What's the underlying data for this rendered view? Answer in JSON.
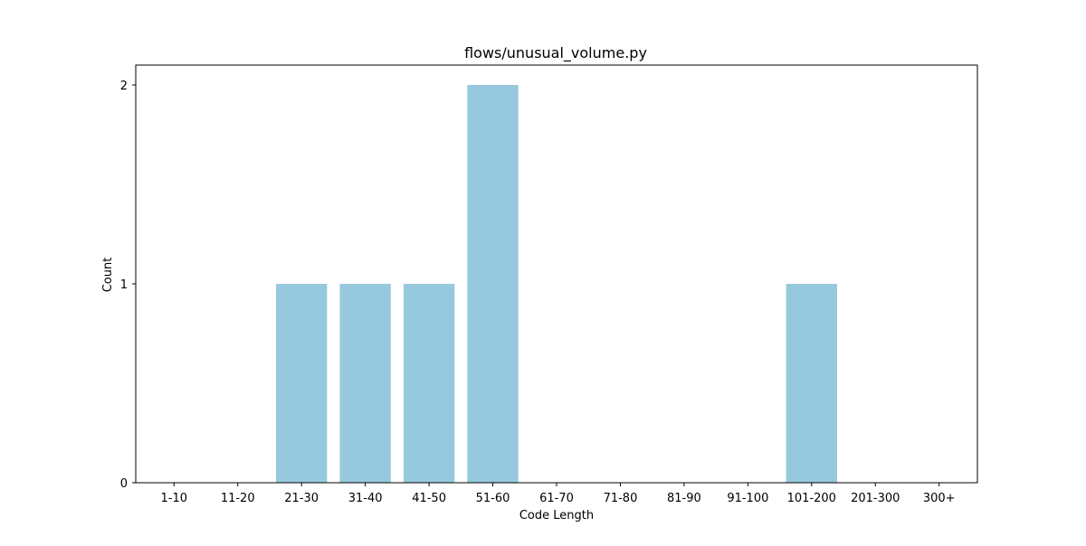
{
  "chart_data": {
    "type": "bar",
    "title": "flows/unusual_volume.py",
    "xlabel": "Code Length",
    "ylabel": "Count",
    "categories": [
      "1-10",
      "11-20",
      "21-30",
      "31-40",
      "41-50",
      "51-60",
      "61-70",
      "71-80",
      "81-90",
      "91-100",
      "101-200",
      "201-300",
      "300+"
    ],
    "values": [
      0,
      0,
      1,
      1,
      1,
      2,
      0,
      0,
      0,
      0,
      1,
      0,
      0
    ],
    "ylim": [
      0,
      2.1
    ],
    "yticks": [
      "0",
      "1",
      "2"
    ],
    "grid": false,
    "bar_color": "#96c9dd"
  }
}
